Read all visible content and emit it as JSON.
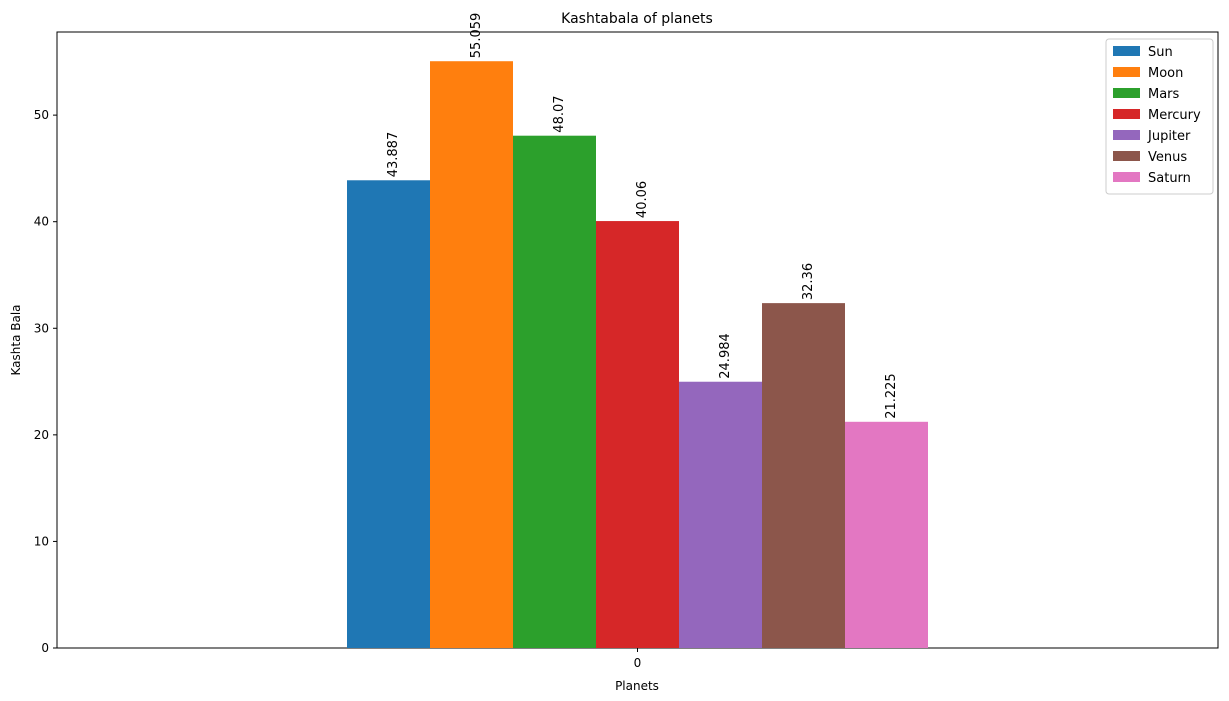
{
  "chart_data": {
    "type": "bar",
    "title": "Kashtabala of planets",
    "xlabel": "Planets",
    "ylabel": "Kashta Bala",
    "categories": [
      "0"
    ],
    "ylim": [
      0,
      57.8
    ],
    "yticks": [
      0,
      10,
      20,
      30,
      40,
      50
    ],
    "legend_position": "top-right",
    "grid": false,
    "series": [
      {
        "name": "Sun",
        "values": [
          43.887
        ],
        "label": "43.887",
        "color": "#1f77b4"
      },
      {
        "name": "Moon",
        "values": [
          55.059
        ],
        "label": "55.059",
        "color": "#ff7f0e"
      },
      {
        "name": "Mars",
        "values": [
          48.07
        ],
        "label": "48.07",
        "color": "#2ca02c"
      },
      {
        "name": "Mercury",
        "values": [
          40.06
        ],
        "label": "40.06",
        "color": "#d62728"
      },
      {
        "name": "Jupiter",
        "values": [
          24.984
        ],
        "label": "24.984",
        "color": "#9467bd"
      },
      {
        "name": "Venus",
        "values": [
          32.36
        ],
        "label": "32.36",
        "color": "#8c564b"
      },
      {
        "name": "Saturn",
        "values": [
          21.225
        ],
        "label": "21.225",
        "color": "#e377c2"
      }
    ]
  }
}
